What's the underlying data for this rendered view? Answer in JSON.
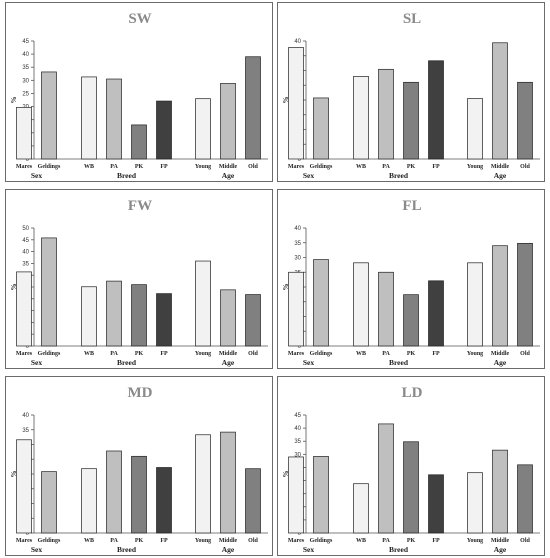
{
  "chart_data": [
    {
      "type": "bar",
      "title": "SW",
      "ylabel": "%",
      "ylim": [
        0,
        45
      ],
      "yticks": [
        0,
        5,
        10,
        15,
        20,
        25,
        30,
        35,
        40,
        45
      ],
      "groups": [
        {
          "label": "Sex",
          "categories": [
            "Mares",
            "Geldings"
          ],
          "values": [
            19.7,
            33.2
          ]
        },
        {
          "label": "Breed",
          "categories": [
            "WB",
            "PA",
            "PK",
            "FP"
          ],
          "values": [
            31.3,
            30.5,
            13.0,
            22.1
          ]
        },
        {
          "label": "Age",
          "categories": [
            "Young",
            "Middle",
            "Old"
          ],
          "values": [
            23.0,
            28.8,
            39.0
          ]
        }
      ]
    },
    {
      "type": "bar",
      "title": "SL",
      "ylabel": "%",
      "ylim": [
        0,
        40
      ],
      "yticks": [
        0,
        5,
        10,
        15,
        20,
        25,
        30,
        35,
        40
      ],
      "groups": [
        {
          "label": "Sex",
          "categories": [
            "Mares",
            "Geldings"
          ],
          "values": [
            37.8,
            20.7
          ]
        },
        {
          "label": "Breed",
          "categories": [
            "WB",
            "PA",
            "PK",
            "FP"
          ],
          "values": [
            28.0,
            30.4,
            26.0,
            33.3
          ]
        },
        {
          "label": "Age",
          "categories": [
            "Young",
            "Middle",
            "Old"
          ],
          "values": [
            20.5,
            39.4,
            26.0
          ]
        }
      ]
    },
    {
      "type": "bar",
      "title": "FW",
      "ylabel": "%",
      "ylim": [
        0,
        50
      ],
      "yticks": [
        0,
        5,
        10,
        15,
        20,
        25,
        30,
        35,
        40,
        45,
        50
      ],
      "groups": [
        {
          "label": "Sex",
          "categories": [
            "Mares",
            "Geldings"
          ],
          "values": [
            31.4,
            45.8
          ]
        },
        {
          "label": "Breed",
          "categories": [
            "WB",
            "PA",
            "PK",
            "FP"
          ],
          "values": [
            25.1,
            27.5,
            26.0,
            22.2
          ]
        },
        {
          "label": "Age",
          "categories": [
            "Young",
            "Middle",
            "Old"
          ],
          "values": [
            36.0,
            23.8,
            21.8
          ]
        }
      ]
    },
    {
      "type": "bar",
      "title": "FL",
      "ylabel": "%",
      "ylim": [
        0,
        40
      ],
      "yticks": [
        0,
        5,
        10,
        15,
        20,
        25,
        30,
        35,
        40
      ],
      "groups": [
        {
          "label": "Sex",
          "categories": [
            "Mares",
            "Geldings"
          ],
          "values": [
            25.0,
            29.3
          ]
        },
        {
          "label": "Breed",
          "categories": [
            "WB",
            "PA",
            "PK",
            "FP"
          ],
          "values": [
            28.2,
            25.0,
            17.4,
            22.1
          ]
        },
        {
          "label": "Age",
          "categories": [
            "Young",
            "Middle",
            "Old"
          ],
          "values": [
            28.2,
            34.0,
            34.8
          ]
        }
      ]
    },
    {
      "type": "bar",
      "title": "MD",
      "ylabel": "%",
      "ylim": [
        0,
        40
      ],
      "yticks": [
        0,
        5,
        10,
        15,
        20,
        25,
        30,
        35,
        40
      ],
      "groups": [
        {
          "label": "Sex",
          "categories": [
            "Mares",
            "Geldings"
          ],
          "values": [
            31.6,
            20.8
          ]
        },
        {
          "label": "Breed",
          "categories": [
            "WB",
            "PA",
            "PK",
            "FP"
          ],
          "values": [
            21.8,
            27.8,
            26.0,
            22.2
          ]
        },
        {
          "label": "Age",
          "categories": [
            "Young",
            "Middle",
            "Old"
          ],
          "values": [
            33.3,
            34.2,
            21.8
          ]
        }
      ]
    },
    {
      "type": "bar",
      "title": "LD",
      "ylabel": "%",
      "ylim": [
        0,
        45
      ],
      "yticks": [
        0,
        5,
        10,
        15,
        20,
        25,
        30,
        35,
        40,
        45
      ],
      "groups": [
        {
          "label": "Sex",
          "categories": [
            "Mares",
            "Geldings"
          ],
          "values": [
            29.0,
            29.2
          ]
        },
        {
          "label": "Breed",
          "categories": [
            "WB",
            "PA",
            "PK",
            "FP"
          ],
          "values": [
            18.8,
            41.6,
            34.8,
            22.2
          ]
        },
        {
          "label": "Age",
          "categories": [
            "Young",
            "Middle",
            "Old"
          ],
          "values": [
            23.0,
            31.6,
            26.0
          ]
        }
      ]
    }
  ],
  "colors": {
    "Mares": "#f2f2f2",
    "Geldings": "#bfbfbf",
    "WB": "#f2f2f2",
    "PA": "#bfbfbf",
    "PK": "#808080",
    "FP": "#404040",
    "Young": "#f2f2f2",
    "Middle": "#bfbfbf",
    "Old": "#808080"
  }
}
